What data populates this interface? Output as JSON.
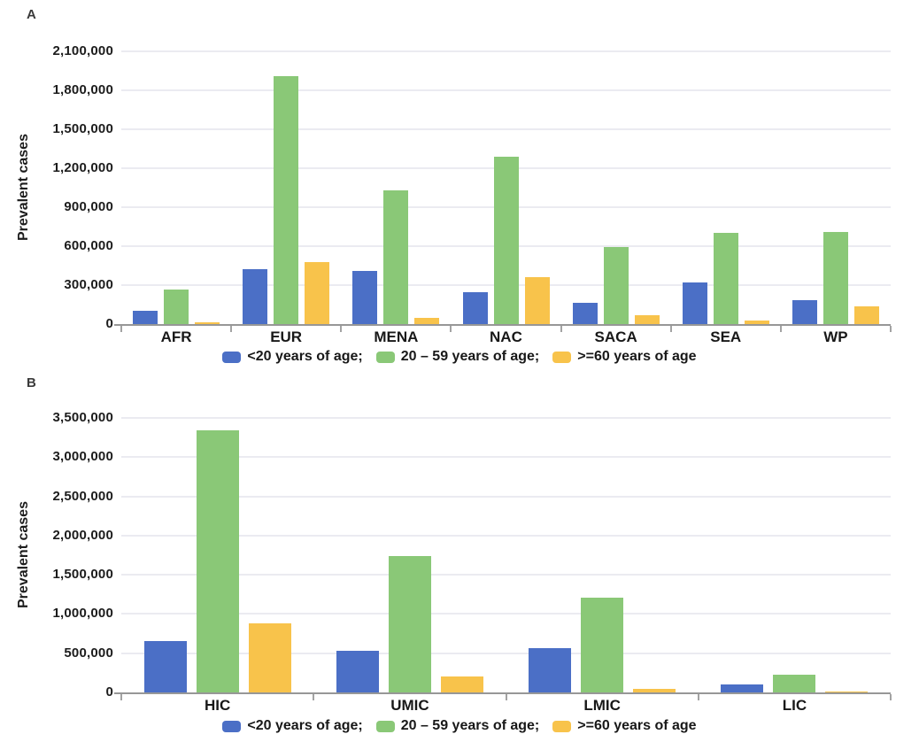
{
  "figure": {
    "background": "#ffffff",
    "panel_letter_color": "#3a3a3a",
    "gridline_color": "#ebebf1",
    "axis_color": "#979797"
  },
  "chart_data": [
    {
      "type": "bar",
      "panel_label": "A",
      "title": "",
      "xlabel": "",
      "ylabel": "Prevalent cases",
      "grid": true,
      "legend_position": "bottom",
      "ylim": [
        0,
        2100000
      ],
      "ytick_step": 300000,
      "ytick_labels": [
        "0",
        "300,000",
        "600,000",
        "900,000",
        "1,200,000",
        "1,500,000",
        "1,800,000",
        "2,100,000"
      ],
      "categories": [
        "AFR",
        "EUR",
        "MENA",
        "NAC",
        "SACA",
        "SEA",
        "WP"
      ],
      "series": [
        {
          "name": "<20 years of age;",
          "color": "#4b6fc6",
          "values": [
            100000,
            420000,
            410000,
            245000,
            165000,
            320000,
            185000
          ]
        },
        {
          "name": "20 – 59 years of age;",
          "color": "#8ac877",
          "values": [
            265000,
            1910000,
            1030000,
            1290000,
            590000,
            700000,
            710000
          ]
        },
        {
          "name": ">=60 years of age",
          "color": "#f8c34b",
          "values": [
            15000,
            480000,
            50000,
            360000,
            70000,
            25000,
            135000
          ]
        }
      ]
    },
    {
      "type": "bar",
      "panel_label": "B",
      "title": "",
      "xlabel": "",
      "ylabel": "Prevalent cases",
      "grid": true,
      "legend_position": "bottom",
      "ylim": [
        0,
        3500000
      ],
      "ytick_step": 500000,
      "ytick_labels": [
        "0",
        "500,000",
        "1,000,000",
        "1,500,000",
        "2,000,000",
        "2,500,000",
        "3,000,000",
        "3,500,000"
      ],
      "categories": [
        "HIC",
        "UMIC",
        "LMIC",
        "LIC"
      ],
      "series": [
        {
          "name": "<20 years of age;",
          "color": "#4b6fc6",
          "values": [
            660000,
            530000,
            570000,
            100000
          ]
        },
        {
          "name": "20 – 59 years of age;",
          "color": "#8ac877",
          "values": [
            3340000,
            1740000,
            1210000,
            230000
          ]
        },
        {
          "name": ">=60 years of age",
          "color": "#f8c34b",
          "values": [
            880000,
            200000,
            50000,
            10000
          ]
        }
      ]
    }
  ]
}
